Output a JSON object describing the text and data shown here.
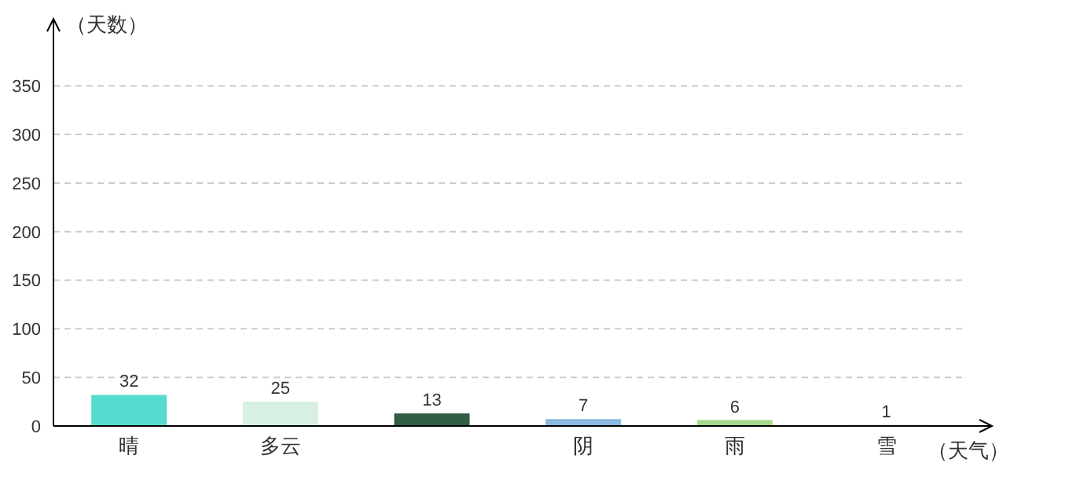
{
  "chart_data": {
    "type": "bar",
    "ylabel": "（天数）",
    "xlabel": "（天气）",
    "categories": [
      "晴",
      "多云",
      null,
      "阴",
      "雨",
      "雪"
    ],
    "values": [
      32,
      25,
      13,
      7,
      6,
      1
    ],
    "colors": [
      "#56dccf",
      "#d8f0e3",
      "#2f5d45",
      "#8ab8e0",
      "#a4d88a",
      "#c878b0"
    ],
    "ylim": [
      0,
      385
    ],
    "yticks": [
      0,
      50,
      100,
      150,
      200,
      250,
      300,
      350
    ],
    "grid": "y",
    "data_labels": true,
    "legend": false
  }
}
